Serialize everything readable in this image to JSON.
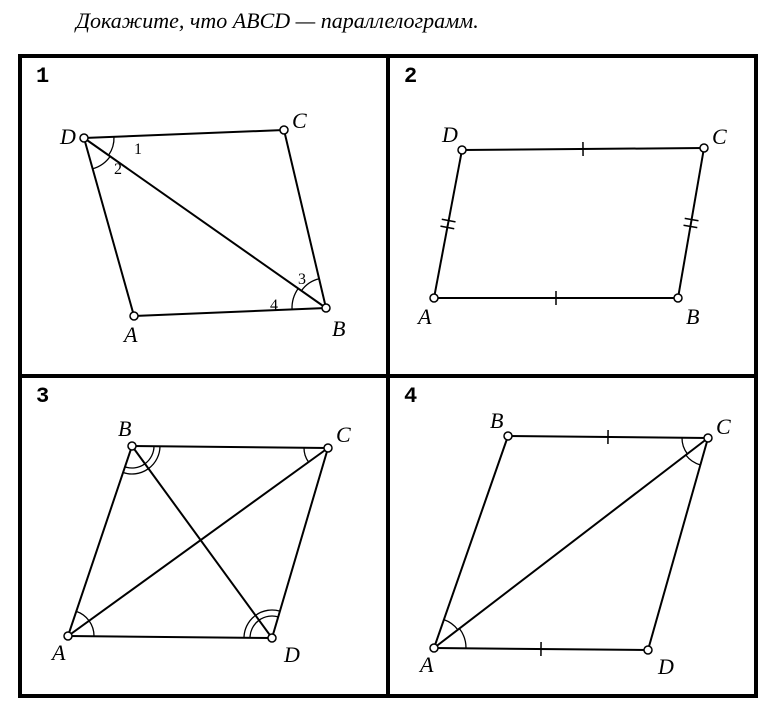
{
  "instruction": "Докажите, что ABCD — параллелограмм.",
  "stroke": "#000000",
  "line_width": 2,
  "point_radius": 4,
  "point_fill": "#ffffff",
  "cells": {
    "c1": {
      "num": "1",
      "pts": {
        "D": [
          62,
          80
        ],
        "C": [
          262,
          72
        ],
        "A": [
          112,
          258
        ],
        "B": [
          304,
          250
        ]
      },
      "labels": {
        "D": [
          38,
          86
        ],
        "C": [
          270,
          70
        ],
        "A": [
          102,
          284
        ],
        "B": [
          310,
          278
        ]
      },
      "diag": [
        "D",
        "B"
      ],
      "angles": [
        "1",
        "2",
        "3",
        "4"
      ],
      "angle_pos": {
        "1": [
          112,
          96
        ],
        "2": [
          92,
          116
        ],
        "3": [
          276,
          226
        ],
        "4": [
          248,
          252
        ]
      }
    },
    "c2": {
      "num": "2",
      "pts": {
        "D": [
          72,
          92
        ],
        "C": [
          314,
          90
        ],
        "A": [
          44,
          240
        ],
        "B": [
          288,
          240
        ]
      },
      "labels": {
        "D": [
          52,
          84
        ],
        "C": [
          322,
          86
        ],
        "A": [
          28,
          266
        ],
        "B": [
          296,
          266
        ]
      },
      "ticks": {
        "DC": 1,
        "AB": 1,
        "DA": 2,
        "CB": 2
      }
    },
    "c3": {
      "num": "3",
      "pts": {
        "B": [
          110,
          68
        ],
        "C": [
          306,
          70
        ],
        "A": [
          46,
          258
        ],
        "D": [
          250,
          260
        ]
      },
      "labels": {
        "B": [
          96,
          58
        ],
        "C": [
          314,
          64
        ],
        "A": [
          30,
          282
        ],
        "D": [
          262,
          284
        ]
      },
      "diags": [
        [
          "A",
          "C"
        ],
        [
          "B",
          "D"
        ]
      ]
    },
    "c4": {
      "num": "4",
      "pts": {
        "B": [
          118,
          58
        ],
        "C": [
          318,
          60
        ],
        "A": [
          44,
          270
        ],
        "D": [
          258,
          272
        ]
      },
      "labels": {
        "B": [
          100,
          50
        ],
        "C": [
          326,
          56
        ],
        "A": [
          30,
          294
        ],
        "D": [
          268,
          296
        ]
      },
      "diag": [
        "A",
        "C"
      ],
      "ticks": {
        "BC": 1,
        "AD": 1
      }
    }
  }
}
